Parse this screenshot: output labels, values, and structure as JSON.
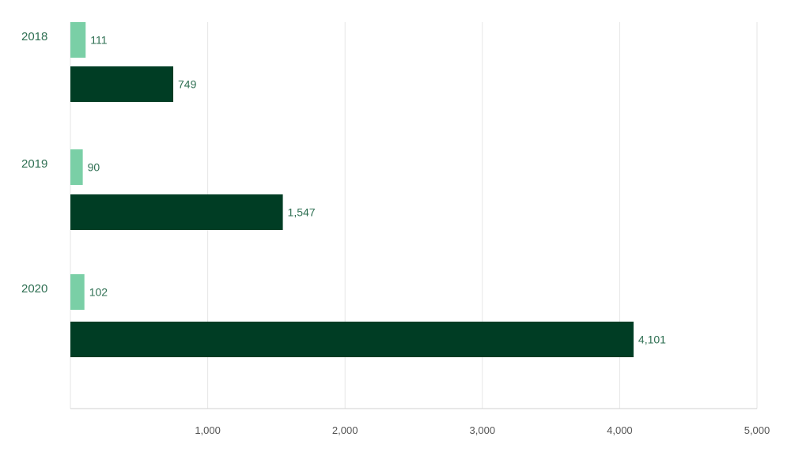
{
  "chart_data": {
    "type": "bar",
    "orientation": "horizontal",
    "categories": [
      "2018",
      "2019",
      "2020"
    ],
    "series": [
      {
        "values": [
          111,
          90,
          102
        ],
        "color": "#7acfa6",
        "labels": [
          "111",
          "90",
          "102"
        ]
      },
      {
        "values": [
          749,
          1547,
          4101
        ],
        "color": "#003d24",
        "labels": [
          "749",
          "1,547",
          "4,101"
        ]
      }
    ],
    "xlim": [
      0,
      5000
    ],
    "xticks": [
      1000,
      2000,
      3000,
      4000,
      5000
    ],
    "xtick_labels": [
      "1,000",
      "2,000",
      "3,000",
      "4,000",
      "5,000"
    ],
    "grid": true,
    "title": "",
    "xlabel": "",
    "ylabel": "",
    "category_label_color": "#2e6f52",
    "value_label_color": "#2e6f52"
  }
}
